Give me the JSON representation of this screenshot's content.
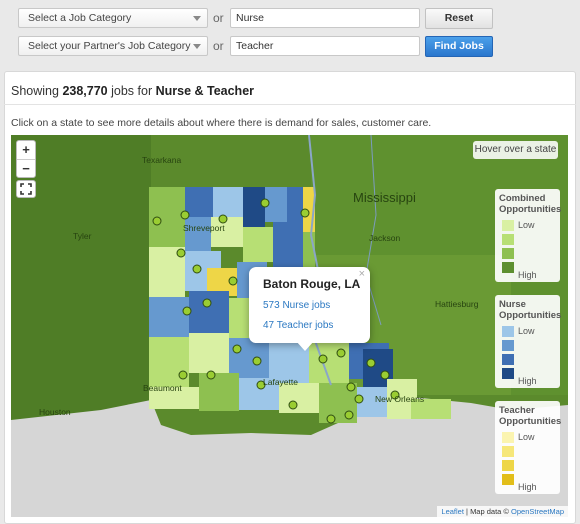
{
  "filters": {
    "job_category": {
      "selected": "Select a Job Category",
      "keyword": "Nurse",
      "button": "Reset"
    },
    "partner_category": {
      "selected": "Select your Partner's Job Category",
      "keyword": "Teacher",
      "button": "Find Jobs"
    },
    "or_label": "or"
  },
  "results": {
    "prefix": "Showing",
    "count": "238,770",
    "middle": "jobs for",
    "query": "Nurse & Teacher"
  },
  "instructions": "Click on a state to see more details about where there is demand for sales, customer care.",
  "map": {
    "zoom_in": "+",
    "zoom_out": "−",
    "hover_box": "Hover over a state",
    "labels": {
      "mississippi": "Mississippi",
      "texarkana": "Texarkana",
      "tyler": "Tyler",
      "shreveport": "Shreveport",
      "jackson": "Jackson",
      "hattiesburg": "Hattiesburg",
      "lafayette": "Lafayette",
      "new_orleans": "New Orleans",
      "houston": "Houston",
      "beaumont": "Beaumont"
    },
    "popup": {
      "title": "Baton Rouge, LA",
      "nurse_link": "573 Nurse jobs",
      "teacher_link": "47 Teacher jobs",
      "close": "×"
    },
    "attribution": {
      "leaflet": "Leaflet",
      "text": "| Map data ©",
      "osm": "OpenStreetMap"
    }
  },
  "legends": [
    {
      "title": "Combined Opportunities",
      "low": "Low",
      "high": "High",
      "colors": [
        "#d9f0a3",
        "#b7df74",
        "#8ec050",
        "#5d8f2f"
      ]
    },
    {
      "title": "Nurse Opportunities",
      "low": "Low",
      "high": "High",
      "colors": [
        "#9dc6e8",
        "#6699cf",
        "#3f6fb3",
        "#1f4a86"
      ]
    },
    {
      "title": "Teacher Opportunities",
      "low": "Low",
      "high": "High",
      "colors": [
        "#fbf4b0",
        "#f6e77a",
        "#eed647",
        "#e2be1a"
      ]
    }
  ]
}
